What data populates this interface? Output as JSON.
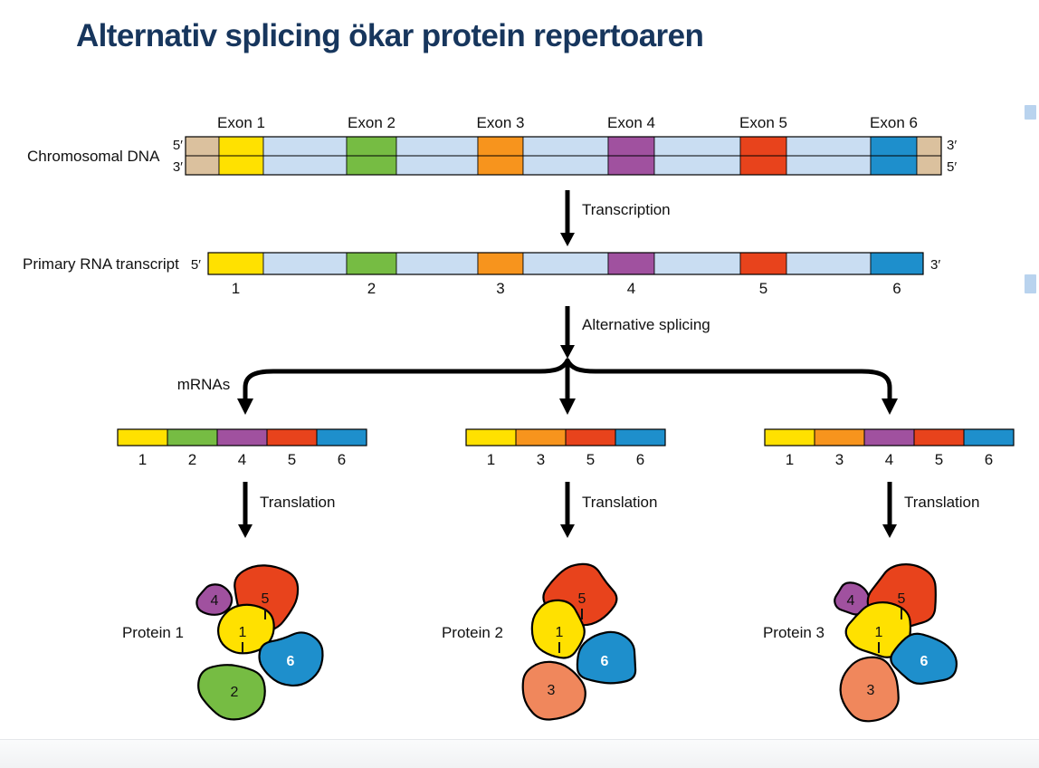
{
  "title": "Alternativ splicing ökar protein repertoaren",
  "palette": {
    "title_color": "#17365D",
    "intron": "#C9DDF2",
    "dna_end": "#DBC19E",
    "outline": "#000000",
    "exon_colors": {
      "1": "#FFE100",
      "2": "#76BC43",
      "3": "#F7941D",
      "4": "#A0519F",
      "5": "#E8431C",
      "6": "#1E8FCC"
    },
    "protein_colors": {
      "1": "#FFE100",
      "2": "#76BC43",
      "3": "#F0875C",
      "4": "#A0519F",
      "5": "#E8431C",
      "6": "#1E8FCC"
    }
  },
  "dna_row": {
    "label": "Chromosomal DNA",
    "left_top": "5′",
    "left_bottom": "3′",
    "right_top": "3′",
    "right_bottom": "5′",
    "exon_labels": [
      "Exon 1",
      "Exon 2",
      "Exon 3",
      "Exon 4",
      "Exon 5",
      "Exon 6"
    ]
  },
  "transcription_label": "Transcription",
  "rna_row": {
    "label": "Primary RNA transcript",
    "left": "5′",
    "right": "3′",
    "exon_numbers": [
      "1",
      "2",
      "3",
      "4",
      "5",
      "6"
    ]
  },
  "splicing_label": "Alternative splicing",
  "mrnas_label": "mRNAs",
  "mrnas": [
    {
      "exons": [
        "1",
        "2",
        "4",
        "5",
        "6"
      ]
    },
    {
      "exons": [
        "1",
        "3",
        "5",
        "6"
      ]
    },
    {
      "exons": [
        "1",
        "3",
        "4",
        "5",
        "6"
      ]
    }
  ],
  "translation_label": "Translation",
  "proteins": [
    {
      "label": "Protein 1",
      "subunits": [
        "4",
        "5",
        "1",
        "6",
        "2"
      ]
    },
    {
      "label": "Protein 2",
      "subunits": [
        "5",
        "1",
        "6",
        "3"
      ]
    },
    {
      "label": "Protein 3",
      "subunits": [
        "4",
        "5",
        "1",
        "6",
        "3"
      ]
    }
  ]
}
